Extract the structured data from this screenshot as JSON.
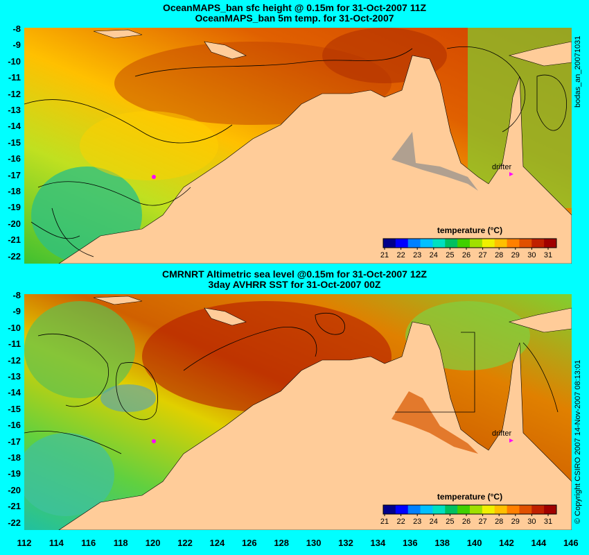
{
  "panels": [
    {
      "title1": "OceanMAPS_ban sfc height @ 0.15m for 31-Oct-2007 11Z",
      "title2": "OceanMAPS_ban 5m temp. for 31-Oct-2007",
      "side_label": "bodas_an_20071031",
      "colorbar_label": "temperature (°C)",
      "drifter_label": "drifter"
    },
    {
      "title1": "CMRNRT Altimetric sea level  @0.15m  for 31-Oct-2007 12Z",
      "title2": "3day AVHRR SST for 31-Oct-2007 00Z",
      "side_label": "© Copyright CSIRO 2007   14-Nov-2007 08:13:01",
      "colorbar_label": "temperature (°C)",
      "drifter_label": "drifter"
    }
  ],
  "y_ticks": [
    "-8",
    "-9",
    "-10",
    "-11",
    "-12",
    "-13",
    "-14",
    "-15",
    "-16",
    "-17",
    "-18",
    "-19",
    "-20",
    "-21",
    "-22"
  ],
  "x_ticks": [
    "112",
    "114",
    "116",
    "118",
    "120",
    "122",
    "124",
    "126",
    "128",
    "130",
    "132",
    "134",
    "136",
    "138",
    "140",
    "142",
    "144",
    "146"
  ],
  "colorbar_ticks": [
    "21",
    "22",
    "23",
    "24",
    "25",
    "26",
    "27",
    "28",
    "29",
    "30",
    "31"
  ],
  "colorbar_colors": [
    "#00008b",
    "#0000ff",
    "#0080ff",
    "#00c0ff",
    "#00e0c0",
    "#00c060",
    "#40d000",
    "#a0e000",
    "#f0f000",
    "#ffc000",
    "#ff8000",
    "#e05000",
    "#c02000",
    "#a00000"
  ],
  "colors": {
    "background": "#00ffff",
    "land": "#ffcc99",
    "shelf": "#b0a090"
  }
}
